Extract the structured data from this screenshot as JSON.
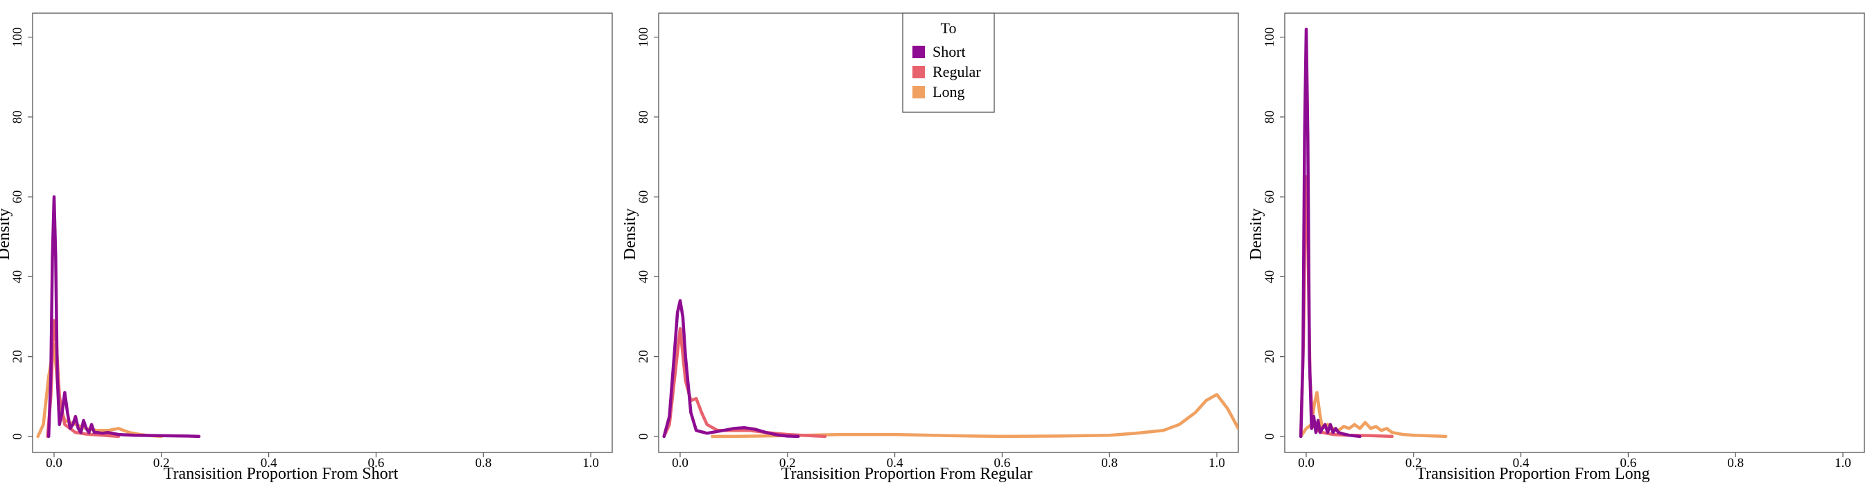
{
  "chart_data": [
    {
      "type": "line",
      "xlabel": "Transisition Proportion From Short",
      "ylabel": "Density",
      "xlim": [
        -0.04,
        1.04
      ],
      "ylim": [
        -4,
        106
      ],
      "xticks": [
        "0.0",
        "0.2",
        "0.4",
        "0.6",
        "0.8",
        "1.0"
      ],
      "yticks": [
        "0",
        "20",
        "40",
        "60",
        "80",
        "100"
      ],
      "grid": false,
      "series": [
        {
          "name": "Short",
          "color": "#8e0c91",
          "x": [
            -0.01,
            -0.006,
            -0.003,
            0.0,
            0.003,
            0.006,
            0.01,
            0.015,
            0.02,
            0.025,
            0.03,
            0.035,
            0.04,
            0.045,
            0.05,
            0.055,
            0.06,
            0.065,
            0.07,
            0.075,
            0.08,
            0.09,
            0.1,
            0.12,
            0.15,
            0.2,
            0.25,
            0.27
          ],
          "y": [
            0,
            15,
            45,
            60,
            45,
            15,
            3,
            6,
            11,
            6,
            2,
            3,
            5,
            2,
            1,
            4,
            2,
            1,
            3,
            1,
            1,
            0.8,
            1,
            0.5,
            0.3,
            0.2,
            0.1,
            0
          ]
        },
        {
          "name": "Regular",
          "color": "#e8626e",
          "x": [
            -0.012,
            -0.006,
            -0.002,
            0.0,
            0.004,
            0.01,
            0.02,
            0.03,
            0.04,
            0.06,
            0.08,
            0.1,
            0.12
          ],
          "y": [
            0,
            10,
            24,
            29,
            24,
            10,
            3,
            2,
            1,
            0.6,
            0.4,
            0.2,
            0
          ]
        },
        {
          "name": "Long",
          "color": "#f0a060",
          "x": [
            -0.03,
            -0.02,
            -0.01,
            0.0,
            0.01,
            0.02,
            0.04,
            0.06,
            0.08,
            0.1,
            0.12,
            0.14,
            0.16,
            0.18,
            0.2
          ],
          "y": [
            0,
            3,
            15,
            23,
            8,
            4,
            3,
            2,
            1.5,
            1.5,
            2,
            1,
            0.5,
            0.2,
            0
          ]
        }
      ]
    },
    {
      "type": "line",
      "xlabel": "Transisition Proportion From Regular",
      "ylabel": "Density",
      "xlim": [
        -0.04,
        1.04
      ],
      "ylim": [
        -4,
        106
      ],
      "xticks": [
        "0.0",
        "0.2",
        "0.4",
        "0.6",
        "0.8",
        "1.0"
      ],
      "yticks": [
        "0",
        "20",
        "40",
        "60",
        "80",
        "100"
      ],
      "grid": false,
      "series": [
        {
          "name": "Short",
          "color": "#8e0c91",
          "x": [
            -0.03,
            -0.02,
            -0.01,
            -0.005,
            0.0,
            0.005,
            0.01,
            0.02,
            0.03,
            0.05,
            0.08,
            0.1,
            0.12,
            0.14,
            0.16,
            0.18,
            0.2,
            0.22
          ],
          "y": [
            0,
            5,
            22,
            31,
            34,
            30,
            20,
            6,
            1.5,
            0.8,
            1.5,
            2,
            2.2,
            1.8,
            1,
            0.4,
            0.1,
            0
          ]
        },
        {
          "name": "Regular",
          "color": "#e8626e",
          "x": [
            -0.03,
            -0.02,
            -0.01,
            0.0,
            0.01,
            0.02,
            0.03,
            0.04,
            0.05,
            0.07,
            0.1,
            0.13,
            0.16,
            0.2,
            0.24,
            0.27
          ],
          "y": [
            0,
            3,
            15,
            27,
            14,
            9,
            9.5,
            6,
            3,
            1.5,
            1.5,
            1.5,
            1,
            0.5,
            0.2,
            0
          ]
        },
        {
          "name": "Long",
          "color": "#f0a060",
          "x": [
            0.06,
            0.1,
            0.2,
            0.3,
            0.4,
            0.5,
            0.6,
            0.7,
            0.8,
            0.85,
            0.9,
            0.93,
            0.96,
            0.98,
            1.0,
            1.02,
            1.04
          ],
          "y": [
            0,
            0,
            0.2,
            0.5,
            0.5,
            0.2,
            0,
            0.1,
            0.3,
            0.8,
            1.5,
            3,
            6,
            9,
            10.5,
            7,
            2
          ]
        }
      ]
    },
    {
      "type": "line",
      "xlabel": "Transisition Proportion From Long",
      "ylabel": "Density",
      "xlim": [
        -0.04,
        1.04
      ],
      "ylim": [
        -4,
        106
      ],
      "xticks": [
        "0.0",
        "0.2",
        "0.4",
        "0.6",
        "0.8",
        "1.0"
      ],
      "yticks": [
        "0",
        "20",
        "40",
        "60",
        "80",
        "100"
      ],
      "grid": false,
      "series": [
        {
          "name": "Short",
          "color": "#8e0c91",
          "x": [
            -0.01,
            -0.006,
            -0.003,
            0.0,
            0.003,
            0.006,
            0.01,
            0.014,
            0.018,
            0.022,
            0.026,
            0.03,
            0.035,
            0.04,
            0.045,
            0.05,
            0.055,
            0.06,
            0.07,
            0.08,
            0.1
          ],
          "y": [
            0,
            20,
            75,
            102,
            75,
            20,
            2,
            5,
            1,
            4,
            1,
            2,
            3,
            1,
            3,
            1,
            2,
            1,
            0.6,
            0.3,
            0
          ]
        },
        {
          "name": "Regular",
          "color": "#e8626e",
          "x": [
            -0.01,
            -0.005,
            -0.002,
            0.0,
            0.003,
            0.007,
            0.012,
            0.02,
            0.03,
            0.05,
            0.08,
            0.12,
            0.16
          ],
          "y": [
            0,
            25,
            55,
            65,
            50,
            15,
            3,
            1.5,
            1,
            0.5,
            0.3,
            0.2,
            0
          ]
        },
        {
          "name": "Long",
          "color": "#f0a060",
          "x": [
            -0.01,
            0.0,
            0.01,
            0.015,
            0.02,
            0.025,
            0.03,
            0.04,
            0.05,
            0.06,
            0.07,
            0.08,
            0.09,
            0.1,
            0.11,
            0.12,
            0.13,
            0.14,
            0.15,
            0.16,
            0.18,
            0.2,
            0.22,
            0.26
          ],
          "y": [
            0,
            2,
            3,
            8,
            11,
            6,
            2,
            3,
            2,
            1.5,
            2.5,
            2,
            3,
            2,
            3.5,
            2,
            2.5,
            1.5,
            2,
            1,
            0.5,
            0.3,
            0.2,
            0
          ]
        }
      ]
    }
  ],
  "legend": {
    "title": "To",
    "items": [
      {
        "label": "Short",
        "color": "#8e0c91"
      },
      {
        "label": "Regular",
        "color": "#e8626e"
      },
      {
        "label": "Long",
        "color": "#f0a060"
      }
    ],
    "placement": "top-center of middle panel"
  }
}
